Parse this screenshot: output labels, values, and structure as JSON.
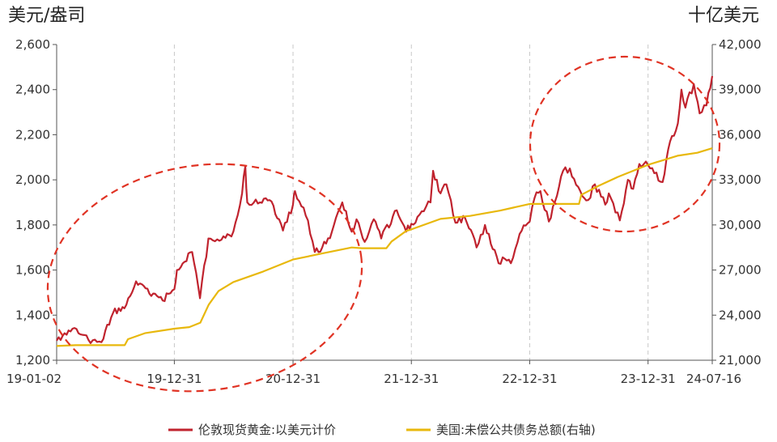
{
  "chart_data": {
    "type": "line",
    "left_unit": "美元/盎司",
    "right_unit": "十亿美元",
    "x_tick_labels": [
      "19-01-02",
      "19-12-31",
      "20-12-31",
      "21-12-31",
      "22-12-31",
      "23-12-31",
      "24-07-16"
    ],
    "x_range": [
      "2019-01-02",
      "2024-07-16"
    ],
    "y_left": {
      "ticks": [
        "1,200",
        "1,400",
        "1,600",
        "1,800",
        "2,000",
        "2,200",
        "2,400",
        "2,600"
      ],
      "range": [
        1200,
        2600
      ]
    },
    "y_right": {
      "ticks": [
        "21,000",
        "24,000",
        "27,000",
        "30,000",
        "33,000",
        "36,000",
        "39,000",
        "42,000"
      ],
      "range": [
        21000,
        42000
      ]
    },
    "grid": "vertical dashed at x ticks",
    "annotations": "red dashed ellipses around 2019-2021 rise and 2023-2024 rise",
    "series": [
      {
        "name": "伦敦现货黄金:以美元计价",
        "axis": "left",
        "color": "#c0232e",
        "points": [
          [
            "2019-01-02",
            1287
          ],
          [
            "2019-02-20",
            1340
          ],
          [
            "2019-04-10",
            1290
          ],
          [
            "2019-05-20",
            1280
          ],
          [
            "2019-06-25",
            1410
          ],
          [
            "2019-07-30",
            1430
          ],
          [
            "2019-09-04",
            1550
          ],
          [
            "2019-10-15",
            1495
          ],
          [
            "2019-11-25",
            1465
          ],
          [
            "2019-12-31",
            1515
          ],
          [
            "2020-01-08",
            1600
          ],
          [
            "2020-02-24",
            1680
          ],
          [
            "2020-03-19",
            1475
          ],
          [
            "2020-04-14",
            1740
          ],
          [
            "2020-05-18",
            1730
          ],
          [
            "2020-06-30",
            1770
          ],
          [
            "2020-07-27",
            1940
          ],
          [
            "2020-08-06",
            2060
          ],
          [
            "2020-08-12",
            1900
          ],
          [
            "2020-09-20",
            1900
          ],
          [
            "2020-10-20",
            1910
          ],
          [
            "2020-11-30",
            1775
          ],
          [
            "2020-12-31",
            1890
          ],
          [
            "2021-01-06",
            1950
          ],
          [
            "2021-02-15",
            1820
          ],
          [
            "2021-03-08",
            1680
          ],
          [
            "2021-03-31",
            1700
          ],
          [
            "2021-04-30",
            1770
          ],
          [
            "2021-06-01",
            1900
          ],
          [
            "2021-06-30",
            1770
          ],
          [
            "2021-07-15",
            1825
          ],
          [
            "2021-08-09",
            1725
          ],
          [
            "2021-09-06",
            1825
          ],
          [
            "2021-09-29",
            1740
          ],
          [
            "2021-11-16",
            1865
          ],
          [
            "2021-12-15",
            1770
          ],
          [
            "2021-12-31",
            1805
          ],
          [
            "2022-01-25",
            1845
          ],
          [
            "2022-02-28",
            1900
          ],
          [
            "2022-03-08",
            2040
          ],
          [
            "2022-03-31",
            1940
          ],
          [
            "2022-04-18",
            1980
          ],
          [
            "2022-05-16",
            1810
          ],
          [
            "2022-06-15",
            1830
          ],
          [
            "2022-07-20",
            1700
          ],
          [
            "2022-08-15",
            1800
          ],
          [
            "2022-09-26",
            1630
          ],
          [
            "2022-10-15",
            1650
          ],
          [
            "2022-11-03",
            1630
          ],
          [
            "2022-11-30",
            1760
          ],
          [
            "2022-12-31",
            1815
          ],
          [
            "2023-01-15",
            1920
          ],
          [
            "2023-02-02",
            1950
          ],
          [
            "2023-02-28",
            1815
          ],
          [
            "2023-04-13",
            2040
          ],
          [
            "2023-05-04",
            2050
          ],
          [
            "2023-06-05",
            1950
          ],
          [
            "2023-06-29",
            1910
          ],
          [
            "2023-07-20",
            1980
          ],
          [
            "2023-08-21",
            1890
          ],
          [
            "2023-09-01",
            1940
          ],
          [
            "2023-10-05",
            1820
          ],
          [
            "2023-10-30",
            2000
          ],
          [
            "2023-11-15",
            1960
          ],
          [
            "2023-12-04",
            2070
          ],
          [
            "2023-12-31",
            2065
          ],
          [
            "2024-02-14",
            1990
          ],
          [
            "2024-03-08",
            2170
          ],
          [
            "2024-04-01",
            2250
          ],
          [
            "2024-04-12",
            2400
          ],
          [
            "2024-04-24",
            2320
          ],
          [
            "2024-05-20",
            2425
          ],
          [
            "2024-06-07",
            2295
          ],
          [
            "2024-06-28",
            2330
          ],
          [
            "2024-07-16",
            2460
          ]
        ]
      },
      {
        "name": "美国:未偿公共债务总额(右轴)",
        "axis": "right",
        "color": "#e8b80c",
        "points": [
          [
            "2019-01-02",
            21950
          ],
          [
            "2019-03-01",
            22000
          ],
          [
            "2019-06-01",
            22000
          ],
          [
            "2019-07-31",
            22000
          ],
          [
            "2019-08-10",
            22400
          ],
          [
            "2019-10-01",
            22800
          ],
          [
            "2019-12-31",
            23100
          ],
          [
            "2020-02-15",
            23200
          ],
          [
            "2020-03-20",
            23500
          ],
          [
            "2020-04-15",
            24700
          ],
          [
            "2020-05-15",
            25600
          ],
          [
            "2020-06-30",
            26200
          ],
          [
            "2020-09-30",
            26900
          ],
          [
            "2020-12-31",
            27700
          ],
          [
            "2021-03-31",
            28100
          ],
          [
            "2021-06-30",
            28500
          ],
          [
            "2021-07-31",
            28450
          ],
          [
            "2021-10-15",
            28450
          ],
          [
            "2021-10-31",
            28900
          ],
          [
            "2021-12-15",
            29600
          ],
          [
            "2021-12-31",
            29700
          ],
          [
            "2022-03-31",
            30400
          ],
          [
            "2022-06-30",
            30600
          ],
          [
            "2022-09-30",
            30950
          ],
          [
            "2022-12-31",
            31400
          ],
          [
            "2023-01-19",
            31400
          ],
          [
            "2023-06-01",
            31400
          ],
          [
            "2023-06-08",
            32000
          ],
          [
            "2023-07-31",
            32600
          ],
          [
            "2023-09-30",
            33200
          ],
          [
            "2023-12-31",
            34000
          ],
          [
            "2024-03-31",
            34600
          ],
          [
            "2024-05-31",
            34800
          ],
          [
            "2024-07-16",
            35100
          ]
        ]
      }
    ],
    "legend": [
      "伦敦现货黄金:以美元计价",
      "美国:未偿公共债务总额(右轴)"
    ]
  }
}
